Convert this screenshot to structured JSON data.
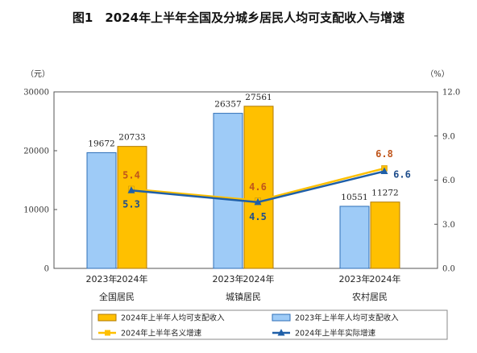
{
  "chart_data": {
    "type": "bar",
    "title": "图1　2024年上半年全国及分城乡居民人均可支配收入与增速",
    "categories": [
      "全国居民",
      "城镇居民",
      "农村居民"
    ],
    "bar_year_labels": [
      [
        "2023年",
        "2024年"
      ],
      [
        "2023年",
        "2024年"
      ],
      [
        "2023年",
        "2024年"
      ]
    ],
    "left_axis": {
      "unit": "（元）",
      "min": 0,
      "max": 30000,
      "ticks": [
        "0",
        "10000",
        "20000",
        "30000"
      ]
    },
    "right_axis": {
      "unit": "（%）",
      "min": 0,
      "max": 12,
      "ticks": [
        "0.0",
        "3.0",
        "6.0",
        "9.0",
        "12.0"
      ]
    },
    "series": [
      {
        "name": "2023年上半年人均可支配收入",
        "type": "bar",
        "axis": "left",
        "color": "#9ecbf7",
        "stroke": "#2f6fb7",
        "values": [
          19672,
          26357,
          10551
        ],
        "labels": [
          "19672",
          "26357",
          "10551"
        ]
      },
      {
        "name": "2024年上半年人均可支配收入",
        "type": "bar",
        "axis": "left",
        "color": "#ffc000",
        "stroke": "#b07a00",
        "values": [
          20733,
          27561,
          11272
        ],
        "labels": [
          "20733",
          "27561",
          "11272"
        ]
      },
      {
        "name": "2024年上半年名义增速",
        "type": "line",
        "axis": "right",
        "color": "#ffc000",
        "label_color": "#c0561c",
        "marker": "square",
        "values": [
          5.4,
          4.6,
          6.8
        ],
        "labels": [
          "5.4",
          "4.6",
          "6.8"
        ]
      },
      {
        "name": "2024年上半年实际增速",
        "type": "line",
        "axis": "right",
        "color": "#1f5fa8",
        "label_color": "#1f4e8c",
        "marker": "triangle",
        "values": [
          5.3,
          4.5,
          6.6
        ],
        "labels": [
          "5.3",
          "4.5",
          "6.6"
        ]
      }
    ],
    "grid": false,
    "legend_position": "bottom"
  }
}
